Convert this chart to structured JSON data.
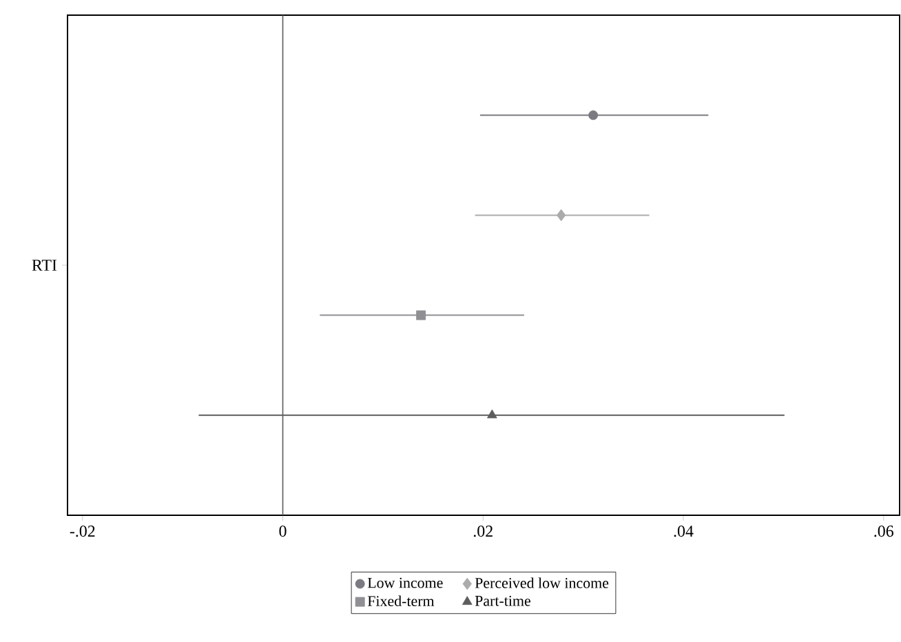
{
  "chart_data": {
    "type": "scatter",
    "orientation": "horizontal",
    "categories": [
      "RTI"
    ],
    "xlim": [
      -0.0215,
      0.0616
    ],
    "xticks": [
      {
        "value": -0.02,
        "label": "-.02"
      },
      0,
      {
        "value": 0.02,
        "label": ".02"
      },
      {
        "value": 0.04,
        "label": ".04"
      },
      {
        "value": 0.06,
        "label": ".06"
      }
    ],
    "series": [
      {
        "name": "Low income",
        "color": "#7a7a80",
        "marker": "circle",
        "values": [
          0.031
        ],
        "errors": [
          [
            0.0197,
            0.0425
          ]
        ]
      },
      {
        "name": "Perceived low income",
        "color": "#ababab",
        "marker": "diamond",
        "values": [
          0.0278
        ],
        "errors": [
          [
            0.0192,
            0.0366
          ]
        ]
      },
      {
        "name": "Fixed-term",
        "color": "#909094",
        "marker": "square",
        "values": [
          0.0138
        ],
        "errors": [
          [
            0.0037,
            0.0241
          ]
        ]
      },
      {
        "name": "Part-time",
        "color": "#5c5c5c",
        "marker": "triangle",
        "values": [
          0.0209
        ],
        "errors": [
          [
            -0.0084,
            0.0501
          ]
        ]
      }
    ],
    "ref_lines": [
      {
        "axis": "x",
        "value": 0,
        "color": "#5a5a5a"
      }
    ],
    "legend": "bottom",
    "grid": false
  }
}
